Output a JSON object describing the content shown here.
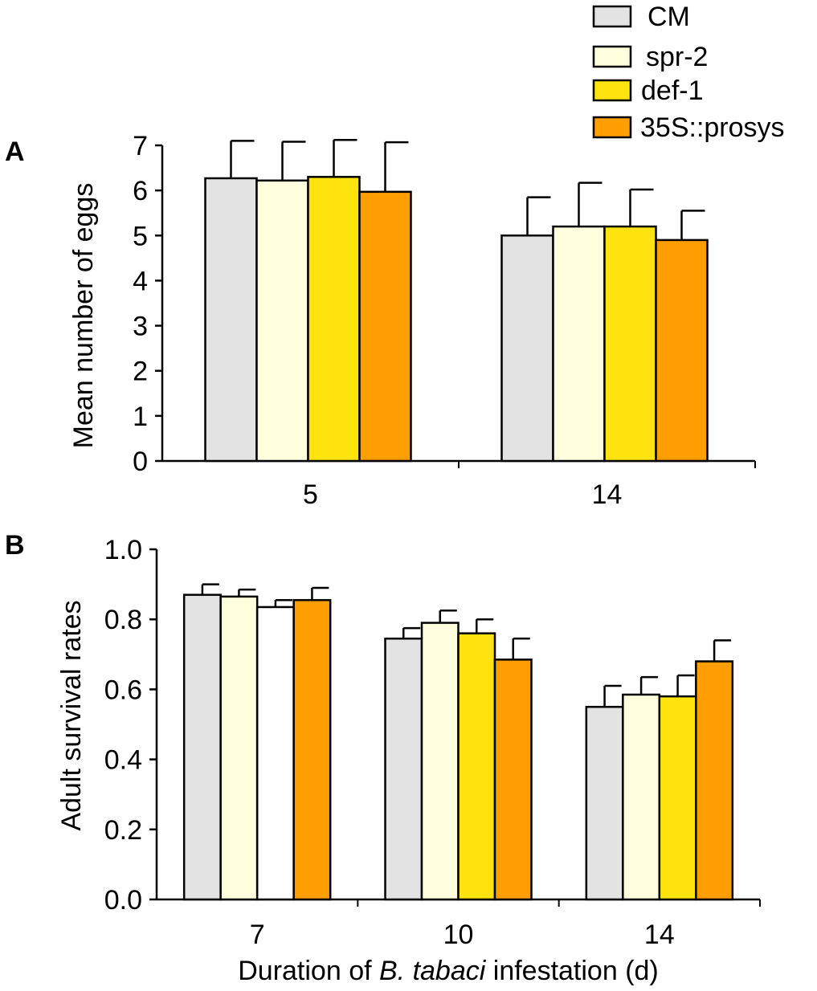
{
  "legend": {
    "entries": [
      {
        "label": "CM",
        "color": "#e3e3e3"
      },
      {
        "label": "spr-2",
        "color": "#ffffde"
      },
      {
        "label": "def-1",
        "color": "#ffe30f"
      },
      {
        "label": "35S::prosys",
        "color": "#ff9e00"
      }
    ]
  },
  "chart_data": [
    {
      "type": "bar",
      "panel_label": "A",
      "ylabel": "Mean number of eggs",
      "xlabel": "",
      "ylim": [
        0,
        7
      ],
      "yticks": [
        0,
        1,
        2,
        3,
        4,
        5,
        6,
        7
      ],
      "ytick_labels": [
        "0",
        "1",
        "2",
        "3",
        "4",
        "5",
        "6",
        "7"
      ],
      "categories": [
        "5",
        "14"
      ],
      "series": [
        {
          "name": "CM",
          "color": "#e3e3e3",
          "values": [
            6.27,
            5.0
          ],
          "errors": [
            0.83,
            0.85
          ]
        },
        {
          "name": "spr-2",
          "color": "#ffffde",
          "values": [
            6.22,
            5.2
          ],
          "errors": [
            0.86,
            0.97
          ]
        },
        {
          "name": "def-1",
          "color": "#ffe30f",
          "values": [
            6.3,
            5.2
          ],
          "errors": [
            0.82,
            0.82
          ]
        },
        {
          "name": "35S::prosys",
          "color": "#ff9e00",
          "values": [
            5.97,
            4.9
          ],
          "errors": [
            1.1,
            0.65
          ]
        }
      ]
    },
    {
      "type": "bar",
      "panel_label": "B",
      "ylabel": "Adult survival rates",
      "xlabel_parts": [
        "Duration of ",
        "B. tabaci",
        " infestation (d)"
      ],
      "ylim": [
        0,
        1.0
      ],
      "yticks": [
        0,
        0.2,
        0.4,
        0.6,
        0.8,
        1.0
      ],
      "ytick_labels": [
        "0.0",
        "0.2",
        "0.4",
        "0.6",
        "0.8",
        "1.0"
      ],
      "categories": [
        "7",
        "10",
        "14"
      ],
      "series": [
        {
          "name": "CM",
          "color": "#e3e3e3",
          "values": [
            0.87,
            0.745,
            0.55
          ],
          "errors": [
            0.03,
            0.03,
            0.06
          ]
        },
        {
          "name": "spr-2",
          "color": "#ffffde",
          "values": [
            0.865,
            0.79,
            0.585
          ],
          "errors": [
            0.02,
            0.035,
            0.05
          ]
        },
        {
          "name": "def-1",
          "color": "#ffe30f",
          "values": [
            0.835,
            0.76,
            0.58
          ],
          "errors": [
            0.02,
            0.04,
            0.06
          ],
          "bar_colors": [
            "#ffffff",
            "#ffe30f",
            "#ffe30f"
          ]
        },
        {
          "name": "35S::prosys",
          "color": "#ff9e00",
          "values": [
            0.855,
            0.685,
            0.68
          ],
          "errors": [
            0.035,
            0.06,
            0.06
          ]
        }
      ]
    }
  ]
}
